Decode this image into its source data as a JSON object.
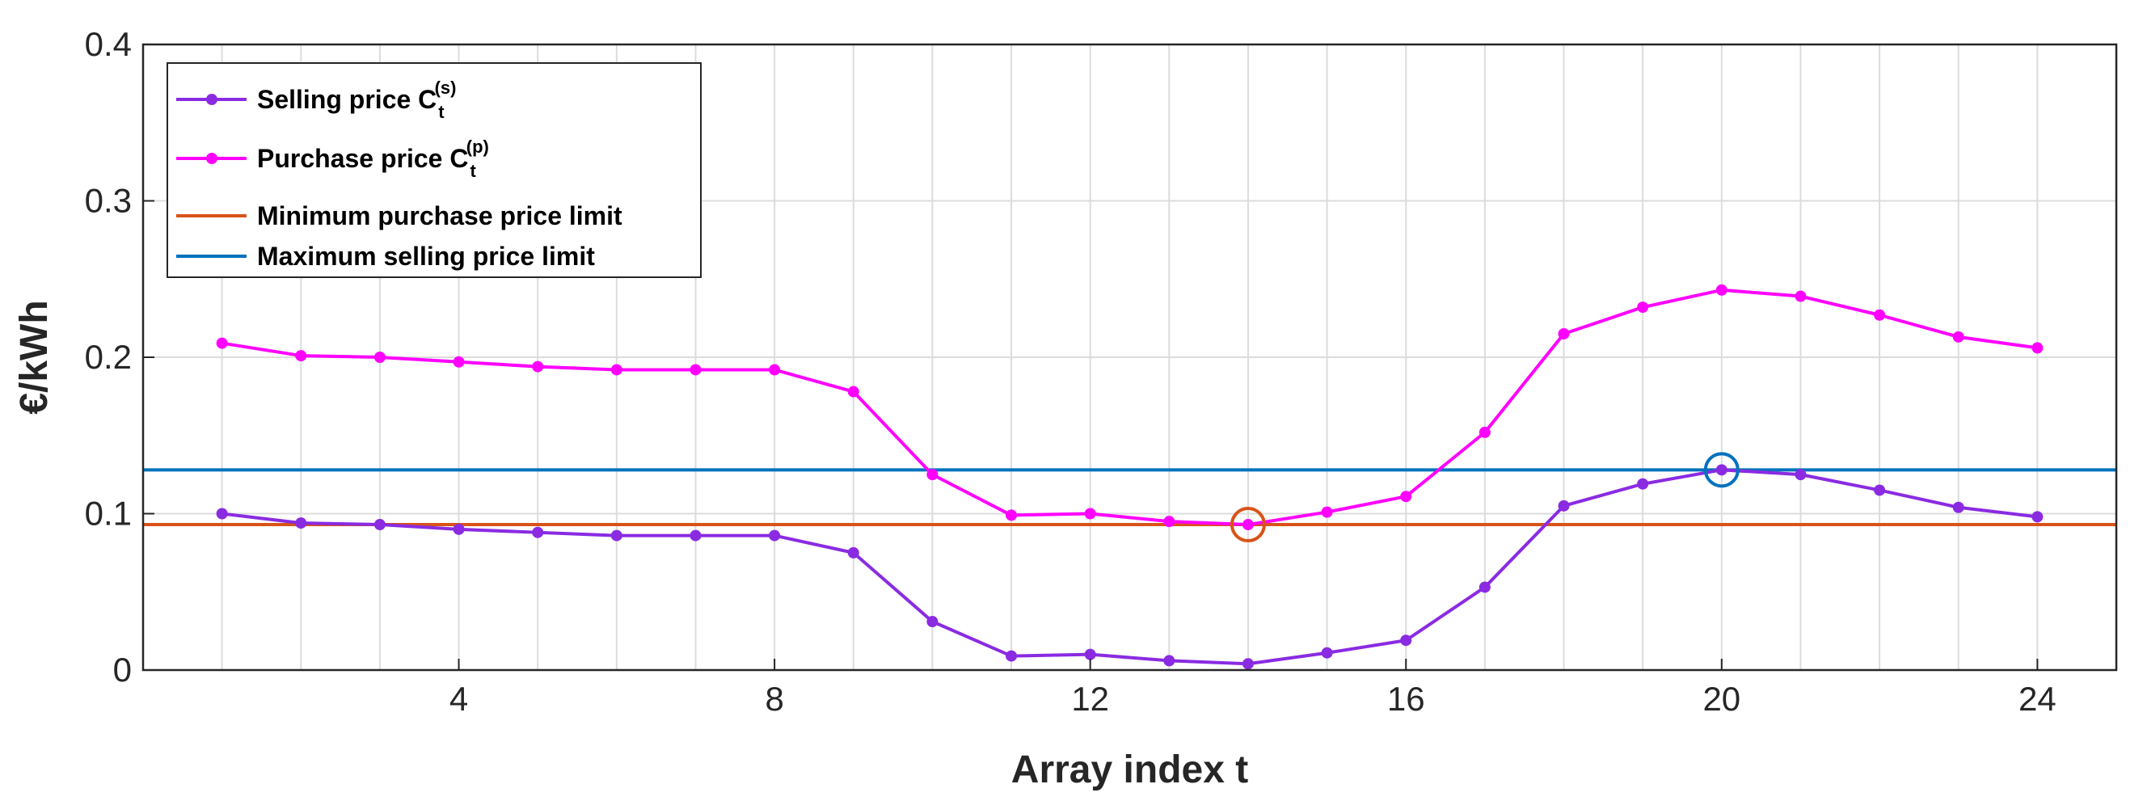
{
  "chart_data": {
    "type": "line",
    "xlabel": "Array index t",
    "ylabel": "€/kWh",
    "xlim": [
      0,
      25
    ],
    "ylim": [
      0,
      0.4
    ],
    "xticks": [
      4,
      8,
      12,
      16,
      20,
      24
    ],
    "yticks": [
      0,
      0.1,
      0.2,
      0.3,
      0.4
    ],
    "ytick_labels": [
      "0",
      "0.1",
      "0.2",
      "0.3",
      "0.4"
    ],
    "grid": true,
    "legend_position": "top-left",
    "x": [
      1,
      2,
      3,
      4,
      5,
      6,
      7,
      8,
      9,
      10,
      11,
      12,
      13,
      14,
      15,
      16,
      17,
      18,
      19,
      20,
      21,
      22,
      23,
      24
    ],
    "series": [
      {
        "name": "Selling price C",
        "sup": "(s)",
        "sub": "t",
        "color": "#8a2be2",
        "values": [
          0.1,
          0.094,
          0.093,
          0.09,
          0.088,
          0.086,
          0.086,
          0.086,
          0.075,
          0.031,
          0.009,
          0.01,
          0.006,
          0.004,
          0.011,
          0.019,
          0.053,
          0.105,
          0.119,
          0.128,
          0.125,
          0.115,
          0.104,
          0.098
        ]
      },
      {
        "name": "Purchase price C",
        "sup": "(p)",
        "sub": "t",
        "color": "#ff00ff",
        "values": [
          0.209,
          0.201,
          0.2,
          0.197,
          0.194,
          0.192,
          0.192,
          0.192,
          0.178,
          0.125,
          0.099,
          0.1,
          0.095,
          0.093,
          0.101,
          0.111,
          0.152,
          0.215,
          0.232,
          0.243,
          0.239,
          0.227,
          0.213,
          0.206
        ]
      }
    ],
    "reference_lines": [
      {
        "name": "Minimum purchase price limit",
        "value": 0.093,
        "color": "#d95319"
      },
      {
        "name": "Maximum selling price limit",
        "value": 0.128,
        "color": "#0072bd"
      }
    ],
    "markers": [
      {
        "x": 14,
        "y": 0.093,
        "color": "#d95319"
      },
      {
        "x": 20,
        "y": 0.128,
        "color": "#0072bd"
      }
    ]
  }
}
